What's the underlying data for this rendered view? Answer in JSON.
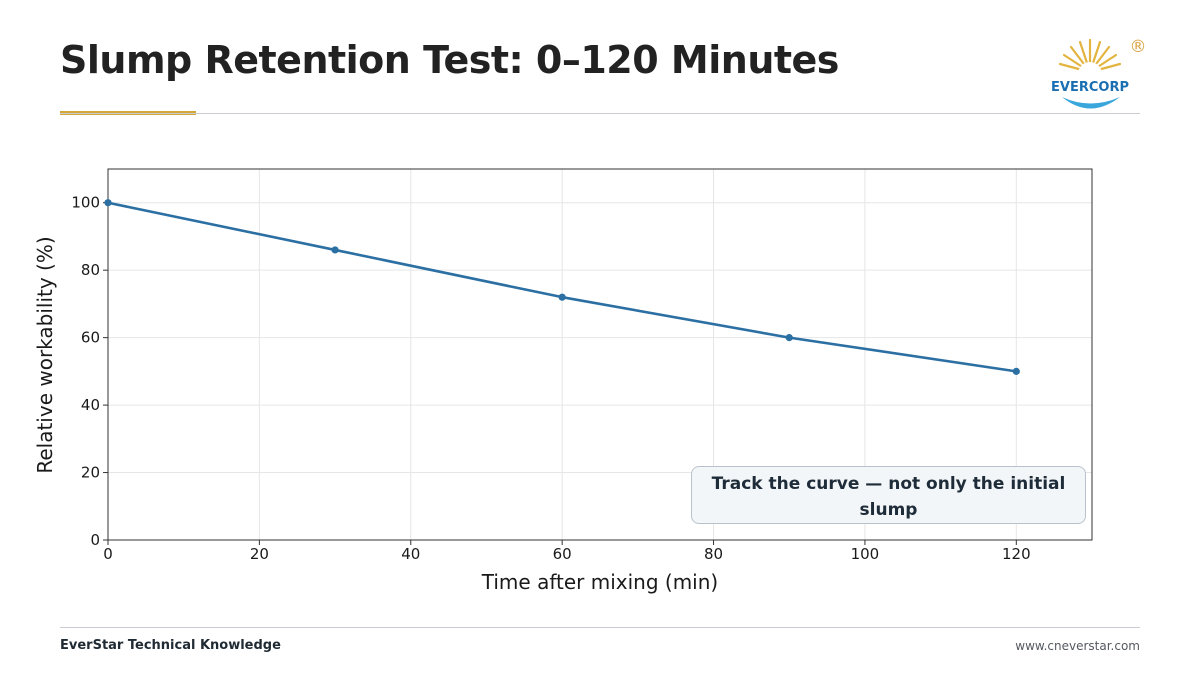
{
  "header": {
    "title": "Slump Retention Test: 0–120 Minutes",
    "logo_text": "EVERCORP",
    "logo_mark": "®",
    "accent_color": "#d4a63c"
  },
  "chart_data": {
    "type": "line",
    "title": "",
    "xlabel": "Time after mixing (min)",
    "ylabel": "Relative workability (%)",
    "x": [
      0,
      30,
      60,
      90,
      120
    ],
    "series": [
      {
        "values": [
          100,
          86,
          72,
          60,
          50
        ],
        "color": "#2b6fa3"
      }
    ],
    "xlim": [
      0,
      130
    ],
    "ylim": [
      0,
      110
    ],
    "xticks": [
      0,
      20,
      40,
      60,
      80,
      100,
      120
    ],
    "yticks": [
      0,
      20,
      40,
      60,
      80,
      100
    ],
    "grid": true,
    "annotation": "Track the curve — not only the initial slump"
  },
  "footer": {
    "left": "EverStar Technical Knowledge",
    "right": "www.cneverstar.com"
  }
}
